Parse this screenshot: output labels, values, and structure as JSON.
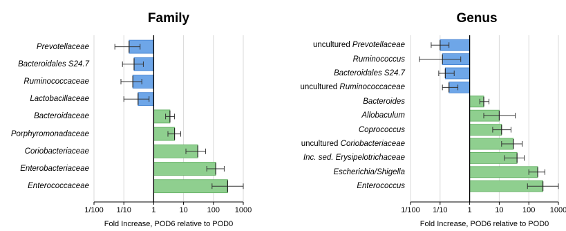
{
  "chart_data": [
    {
      "type": "bar",
      "orientation": "horizontal",
      "title": "Family",
      "xlabel": "Fold Increase, POD6 relative to POD0",
      "x_scale": "log10",
      "xlim": [
        0.01,
        1000
      ],
      "xticks": [
        "1/100",
        "1/10",
        "1",
        "10",
        "100",
        "1000"
      ],
      "grid": "vertical",
      "categories": [
        {
          "prefix": "",
          "name": "Prevotellaceae"
        },
        {
          "prefix": "",
          "name": "Bacteroidales S24.7"
        },
        {
          "prefix": "",
          "name": "Ruminococcaceae"
        },
        {
          "prefix": "",
          "name": "Lactobacillaceae"
        },
        {
          "prefix": "",
          "name": "Bacteroidaceae"
        },
        {
          "prefix": "",
          "name": "Porphyromonadaceae"
        },
        {
          "prefix": "",
          "name": "Coriobacteriaceae"
        },
        {
          "prefix": "",
          "name": "Enterobacteriaceae"
        },
        {
          "prefix": "",
          "name": "Enterococcaceae"
        }
      ],
      "values": [
        0.15,
        0.22,
        0.2,
        0.3,
        3.5,
        5,
        30,
        120,
        300
      ],
      "err_low": [
        0.05,
        0.09,
        0.08,
        0.1,
        2.5,
        3,
        12,
        60,
        90
      ],
      "err_high": [
        0.35,
        0.45,
        0.4,
        0.7,
        5,
        8,
        55,
        230,
        1000
      ],
      "colors": {
        "decrease": "#6ea6e8",
        "increase": "#8fcf8f"
      }
    },
    {
      "type": "bar",
      "orientation": "horizontal",
      "title": "Genus",
      "xlabel": "Fold Increase, POD6 relative to POD0",
      "x_scale": "log10",
      "xlim": [
        0.01,
        1000
      ],
      "xticks": [
        "1/100",
        "1/10",
        "1",
        "10",
        "100",
        "1000"
      ],
      "grid": "vertical",
      "categories": [
        {
          "prefix": "uncultured ",
          "name": "Prevotellaceae"
        },
        {
          "prefix": "",
          "name": "Ruminococcus"
        },
        {
          "prefix": "",
          "name": "Bacteroidales S24.7"
        },
        {
          "prefix": "uncultured ",
          "name": "Ruminococcaceae"
        },
        {
          "prefix": "",
          "name": "Bacteroides"
        },
        {
          "prefix": "",
          "name": "Allobaculum"
        },
        {
          "prefix": "",
          "name": "Coprococcus"
        },
        {
          "prefix": "uncultured ",
          "name": "Coriobacteriaceae"
        },
        {
          "prefix": "",
          "name": "Inc. sed. Erysipelotrichaceae"
        },
        {
          "prefix": "",
          "name": "Escherichia/Shigella"
        },
        {
          "prefix": "",
          "name": "Enterococcus"
        }
      ],
      "values": [
        0.1,
        0.12,
        0.15,
        0.2,
        3,
        10,
        12,
        30,
        40,
        200,
        300
      ],
      "err_low": [
        0.05,
        0.02,
        0.09,
        0.12,
        2.2,
        3,
        6,
        12,
        15,
        100,
        90
      ],
      "err_high": [
        0.2,
        0.5,
        0.3,
        0.4,
        4.5,
        35,
        25,
        60,
        70,
        350,
        1000
      ],
      "colors": {
        "decrease": "#6ea6e8",
        "increase": "#8fcf8f"
      }
    }
  ]
}
